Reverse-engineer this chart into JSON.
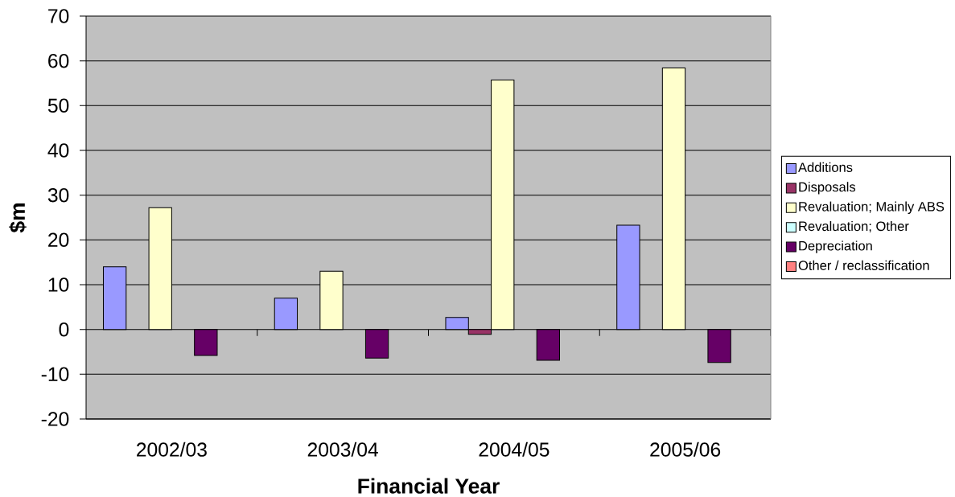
{
  "chart_data": {
    "type": "bar",
    "xlabel": "Financial Year",
    "ylabel": "$m",
    "categories": [
      "2002/03",
      "2003/04",
      "2004/05",
      "2005/06"
    ],
    "series": [
      {
        "name": "Additions",
        "color": "#9999ff",
        "values": [
          14.0,
          7.0,
          2.7,
          23.3
        ]
      },
      {
        "name": "Disposals",
        "color": "#993366",
        "values": [
          null,
          null,
          -1.1,
          null
        ]
      },
      {
        "name": "Revaluation; Mainly ABS",
        "color": "#ffffcc",
        "values": [
          27.2,
          13.0,
          55.7,
          58.4
        ]
      },
      {
        "name": "Revaluation; Other",
        "color": "#ccffff",
        "values": [
          null,
          null,
          null,
          null
        ]
      },
      {
        "name": "Depreciation",
        "color": "#660066",
        "values": [
          -5.8,
          -6.4,
          -6.9,
          -7.4
        ]
      },
      {
        "name": "Other / reclassification",
        "color": "#ff8080",
        "values": [
          null,
          null,
          null,
          null
        ]
      }
    ],
    "ylim": [
      -20,
      70
    ],
    "yticks": [
      -20,
      -10,
      0,
      10,
      20,
      30,
      40,
      50,
      60,
      70
    ],
    "grid": "y",
    "legend": "right"
  }
}
